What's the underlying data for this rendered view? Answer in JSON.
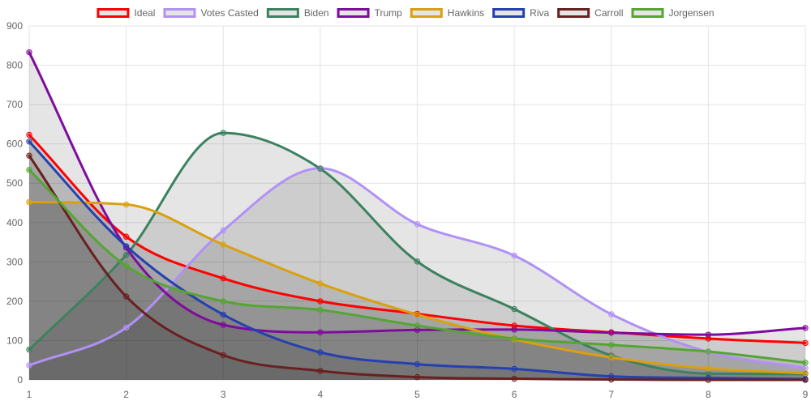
{
  "chart_data": {
    "type": "line",
    "x": [
      1,
      2,
      3,
      4,
      5,
      6,
      7,
      8,
      9
    ],
    "xlim": [
      1,
      9
    ],
    "ylim": [
      0,
      900
    ],
    "y_ticks": [
      0,
      100,
      200,
      300,
      400,
      500,
      600,
      700,
      800,
      900
    ],
    "x_ticks": [
      "1",
      "2",
      "3",
      "4",
      "5",
      "6",
      "7",
      "8",
      "9"
    ],
    "grid": true,
    "legend": "top-center",
    "series": [
      {
        "name": "Ideal",
        "color": "#ff0000",
        "values": [
          623,
          364,
          258,
          200,
          168,
          138,
          121,
          105,
          94
        ]
      },
      {
        "name": "Votes Casted",
        "color": "#b191f5",
        "values": [
          37,
          133,
          380,
          538,
          396,
          316,
          167,
          71,
          30
        ]
      },
      {
        "name": "Biden",
        "color": "#3c8160",
        "values": [
          77,
          318,
          628,
          537,
          301,
          180,
          62,
          16,
          15
        ]
      },
      {
        "name": "Trump",
        "color": "#7e0c9e",
        "values": [
          833,
          336,
          140,
          121,
          127,
          128,
          120,
          115,
          132
        ]
      },
      {
        "name": "Hawkins",
        "color": "#d9a010",
        "values": [
          452,
          446,
          344,
          245,
          166,
          103,
          57,
          29,
          17
        ]
      },
      {
        "name": "Riva",
        "color": "#2540b0",
        "values": [
          606,
          340,
          166,
          70,
          40,
          28,
          9,
          5,
          2
        ]
      },
      {
        "name": "Carroll",
        "color": "#6a2020",
        "values": [
          570,
          212,
          63,
          23,
          7,
          3,
          1,
          0,
          0
        ]
      },
      {
        "name": "Jorgensen",
        "color": "#55a532",
        "values": [
          534,
          290,
          200,
          178,
          138,
          105,
          89,
          72,
          44
        ]
      }
    ]
  }
}
